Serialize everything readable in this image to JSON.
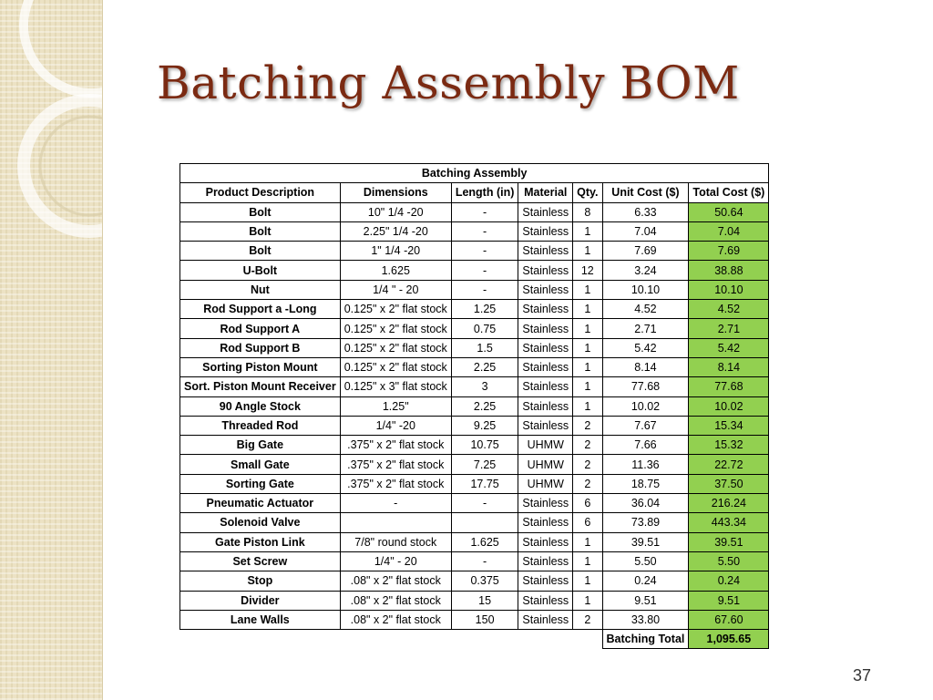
{
  "slide": {
    "title": "Batching Assembly BOM",
    "page_number": "37"
  },
  "table": {
    "caption": "Batching Assembly",
    "headers": [
      "Product Description",
      "Dimensions",
      "Length (in)",
      "Material",
      "Qty.",
      "Unit Cost ($)",
      "Total Cost ($)"
    ],
    "rows": [
      [
        "Bolt",
        "10\" 1/4 -20",
        "-",
        "Stainless",
        "8",
        "6.33",
        "50.64"
      ],
      [
        "Bolt",
        "2.25\" 1/4 -20",
        "-",
        "Stainless",
        "1",
        "7.04",
        "7.04"
      ],
      [
        "Bolt",
        "1\" 1/4 -20",
        "-",
        "Stainless",
        "1",
        "7.69",
        "7.69"
      ],
      [
        "U-Bolt",
        "1.625",
        "-",
        "Stainless",
        "12",
        "3.24",
        "38.88"
      ],
      [
        "Nut",
        "1/4 \" - 20",
        "-",
        "Stainless",
        "1",
        "10.10",
        "10.10"
      ],
      [
        "Rod Support a -Long",
        "0.125\" x 2\" flat stock",
        "1.25",
        "Stainless",
        "1",
        "4.52",
        "4.52"
      ],
      [
        "Rod Support A",
        "0.125\" x 2\" flat stock",
        "0.75",
        "Stainless",
        "1",
        "2.71",
        "2.71"
      ],
      [
        "Rod Support B",
        "0.125\" x 2\" flat stock",
        "1.5",
        "Stainless",
        "1",
        "5.42",
        "5.42"
      ],
      [
        "Sorting Piston Mount",
        "0.125\" x 2\" flat stock",
        "2.25",
        "Stainless",
        "1",
        "8.14",
        "8.14"
      ],
      [
        "Sort. Piston Mount Receiver",
        "0.125\" x 3\" flat stock",
        "3",
        "Stainless",
        "1",
        "77.68",
        "77.68"
      ],
      [
        "90 Angle Stock",
        "1.25\"",
        "2.25",
        "Stainless",
        "1",
        "10.02",
        "10.02"
      ],
      [
        "Threaded Rod",
        "1/4\" -20",
        "9.25",
        "Stainless",
        "2",
        "7.67",
        "15.34"
      ],
      [
        "Big Gate",
        ".375\" x 2\" flat stock",
        "10.75",
        "UHMW",
        "2",
        "7.66",
        "15.32"
      ],
      [
        "Small Gate",
        ".375\" x 2\" flat stock",
        "7.25",
        "UHMW",
        "2",
        "11.36",
        "22.72"
      ],
      [
        "Sorting Gate",
        ".375\" x 2\" flat stock",
        "17.75",
        "UHMW",
        "2",
        "18.75",
        "37.50"
      ],
      [
        "Pneumatic Actuator",
        "-",
        "-",
        "Stainless",
        "6",
        "36.04",
        "216.24"
      ],
      [
        "Solenoid Valve",
        "",
        "",
        "Stainless",
        "6",
        "73.89",
        "443.34"
      ],
      [
        "Gate Piston Link",
        "7/8\" round stock",
        "1.625",
        "Stainless",
        "1",
        "39.51",
        "39.51"
      ],
      [
        "Set Screw",
        "1/4\" - 20",
        "-",
        "Stainless",
        "1",
        "5.50",
        "5.50"
      ],
      [
        "Stop",
        ".08\" x 2\" flat stock",
        "0.375",
        "Stainless",
        "1",
        "0.24",
        "0.24"
      ],
      [
        "Divider",
        ".08\" x 2\" flat stock",
        "15",
        "Stainless",
        "1",
        "9.51",
        "9.51"
      ],
      [
        "Lane Walls",
        ".08\" x 2\" flat stock",
        "150",
        "Stainless",
        "2",
        "33.80",
        "67.60"
      ]
    ],
    "footer": {
      "label": "Batching Total",
      "value": "1,095.65"
    }
  },
  "colors": {
    "title": "#7b2a12",
    "total_highlight": "#92d050",
    "sidebar": "#ece2c4"
  }
}
